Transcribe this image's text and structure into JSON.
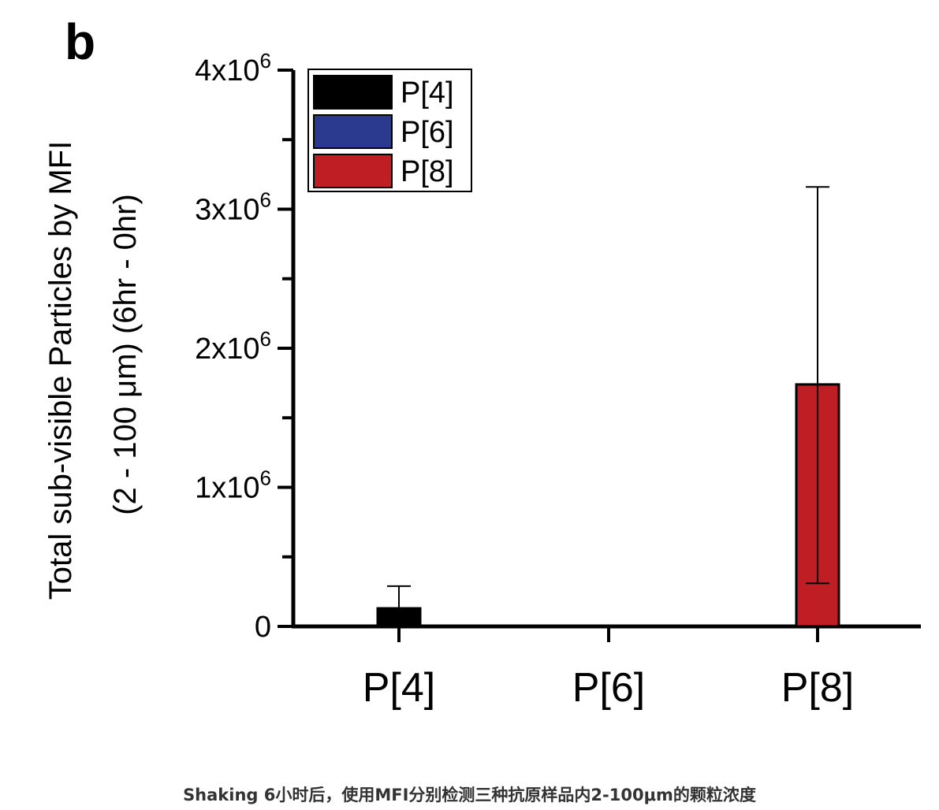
{
  "panel_label": "b",
  "caption": "Shaking 6小时后，使用MFI分别检测三种抗原样品内2-100μm的颗粒浓度",
  "chart_data": {
    "type": "bar",
    "categories": [
      "P[4]",
      "P[6]",
      "P[8]"
    ],
    "series": [
      {
        "name": "P[4]",
        "category": "P[4]",
        "value": 130000,
        "error_high": 290000,
        "error_low": 130000,
        "color": "#000000"
      },
      {
        "name": "P[6]",
        "category": "P[6]",
        "value": 0,
        "error_high": 0,
        "error_low": 0,
        "color": "#2b3a8f"
      },
      {
        "name": "P[8]",
        "category": "P[8]",
        "value": 1740000,
        "error_high": 3160000,
        "error_low": 310000,
        "color": "#bf1e24"
      }
    ],
    "ylabel_line1": "Total sub-visible Particles by MFI",
    "ylabel_line2": "(2 - 100 μm) (6hr - 0hr)",
    "ylim": [
      0,
      4000000
    ],
    "yticks": [
      {
        "value": 0,
        "mantissa": "0",
        "exp": ""
      },
      {
        "value": 1000000,
        "mantissa": "1x10",
        "exp": "6"
      },
      {
        "value": 2000000,
        "mantissa": "2x10",
        "exp": "6"
      },
      {
        "value": 3000000,
        "mantissa": "3x10",
        "exp": "6"
      },
      {
        "value": 4000000,
        "mantissa": "4x10",
        "exp": "6"
      }
    ],
    "minor_tick_step": 500000,
    "legend_position": "top-left",
    "grid": false
  }
}
